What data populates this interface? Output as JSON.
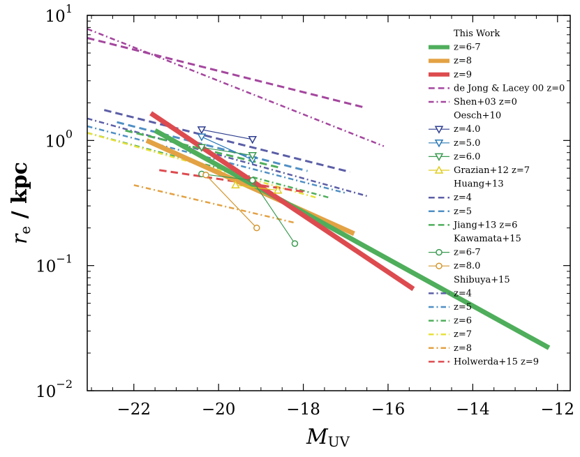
{
  "chart_data": {
    "type": "line",
    "title": "",
    "xlabel_main": "M",
    "xlabel_sub": "UV",
    "ylabel_main": "r",
    "ylabel_sub": "e",
    "ylabel_rest": " / kpc",
    "x_axis": {
      "range": [
        -23.1,
        -11.7
      ],
      "ticks": [
        -22,
        -20,
        -18,
        -16,
        -14,
        -12
      ],
      "tick_labels": [
        "−22",
        "−20",
        "−18",
        "−16",
        "−14",
        "−12"
      ]
    },
    "y_axis": {
      "scale": "log",
      "range": [
        0.01,
        10
      ],
      "ticks": [
        0.01,
        0.1,
        1,
        10
      ],
      "tick_base": "10",
      "tick_exps": [
        "−2",
        "−1",
        "0",
        "1"
      ]
    },
    "grid": false,
    "legend_position": "right",
    "legend": [
      {
        "kind": "header",
        "label": "This Work"
      },
      {
        "kind": "item",
        "label": "z=6-7",
        "ref": "tw67"
      },
      {
        "kind": "item",
        "label": "z=8",
        "ref": "tw8"
      },
      {
        "kind": "item",
        "label": "z=9",
        "ref": "tw9"
      },
      {
        "kind": "item",
        "label": "de Jong & Lacey 00 z=0",
        "ref": "djl"
      },
      {
        "kind": "item",
        "label": "Shen+03 z=0",
        "ref": "shen"
      },
      {
        "kind": "header",
        "label": "Oesch+10"
      },
      {
        "kind": "item",
        "label": "z=4.0",
        "ref": "o4"
      },
      {
        "kind": "item",
        "label": "z=5.0",
        "ref": "o5"
      },
      {
        "kind": "item",
        "label": "z=6.0",
        "ref": "o6"
      },
      {
        "kind": "item",
        "label": "Grazian+12 z=7",
        "ref": "graz"
      },
      {
        "kind": "header",
        "label": "Huang+13"
      },
      {
        "kind": "item",
        "label": "z=4",
        "ref": "h4"
      },
      {
        "kind": "item",
        "label": "z=5",
        "ref": "h5"
      },
      {
        "kind": "item",
        "label": "Jiang+13 z=6",
        "ref": "jiang"
      },
      {
        "kind": "header",
        "label": "Kawamata+15"
      },
      {
        "kind": "item",
        "label": "z=6-7",
        "ref": "k67"
      },
      {
        "kind": "item",
        "label": "z=8.0",
        "ref": "k8"
      },
      {
        "kind": "header",
        "label": "Shibuya+15"
      },
      {
        "kind": "item",
        "label": "z=4",
        "ref": "s4"
      },
      {
        "kind": "item",
        "label": "z=5",
        "ref": "s5"
      },
      {
        "kind": "item",
        "label": "z=6",
        "ref": "s6"
      },
      {
        "kind": "item",
        "label": "z=7",
        "ref": "s7"
      },
      {
        "kind": "item",
        "label": "z=8",
        "ref": "s8"
      },
      {
        "kind": "item",
        "label": "Holwerda+15 z=9",
        "ref": "holw"
      }
    ],
    "series": [
      {
        "id": "s4",
        "name": "Shibuya+15 z=4",
        "color": "#5b5ea6",
        "style": "dashdot",
        "width": 2.5,
        "x": [
          -23.1,
          -16.5
        ],
        "y": [
          1.5,
          0.36
        ]
      },
      {
        "id": "s5",
        "name": "Shibuya+15 z=5",
        "color": "#4f8fc4",
        "style": "dashdot",
        "width": 2.5,
        "x": [
          -23.1,
          -17.0
        ],
        "y": [
          1.3,
          0.38
        ]
      },
      {
        "id": "s6",
        "name": "Shibuya+15 z=6",
        "color": "#4fae5b",
        "style": "dashdot",
        "width": 2.5,
        "x": [
          -23.1,
          -17.4
        ],
        "y": [
          1.15,
          0.35
        ]
      },
      {
        "id": "s7",
        "name": "Shibuya+15 z=7",
        "color": "#e8e13c",
        "style": "dashdot",
        "width": 2.5,
        "x": [
          -23.1,
          -17.7
        ],
        "y": [
          1.15,
          0.35
        ]
      },
      {
        "id": "s8",
        "name": "Shibuya+15 z=8",
        "color": "#e3a244",
        "style": "dashdot",
        "width": 2.5,
        "x": [
          -22.0,
          -18.2
        ],
        "y": [
          0.44,
          0.22
        ]
      },
      {
        "id": "djl",
        "name": "de Jong & Lacey 00 z=0",
        "color": "#a4469e",
        "style": "dashed",
        "width": 3,
        "x": [
          -23.1,
          -16.6
        ],
        "y": [
          6.6,
          1.85
        ]
      },
      {
        "id": "shen",
        "name": "Shen+03 z=0",
        "color": "#a4469e",
        "style": "dashdot",
        "width": 2.5,
        "x": [
          -23.1,
          -16.1
        ],
        "y": [
          7.8,
          0.9
        ]
      },
      {
        "id": "h4",
        "name": "Huang+13 z=4",
        "color": "#5b5ea6",
        "style": "dashed",
        "width": 3,
        "x": [
          -22.7,
          -16.9
        ],
        "y": [
          1.75,
          0.56
        ]
      },
      {
        "id": "h5",
        "name": "Huang+13 z=5",
        "color": "#4f8fc4",
        "style": "dashed",
        "width": 3,
        "x": [
          -22.4,
          -17.9
        ],
        "y": [
          1.4,
          0.57
        ]
      },
      {
        "id": "jiang",
        "name": "Jiang+13 z=6",
        "color": "#4fae5b",
        "style": "dashed",
        "width": 3,
        "x": [
          -22.2,
          -18.5
        ],
        "y": [
          1.2,
          0.6
        ]
      },
      {
        "id": "holw",
        "name": "Holwerda+15 z=9",
        "color": "#dd4b4f",
        "style": "dashed",
        "width": 3,
        "x": [
          -21.4,
          -18.0
        ],
        "y": [
          0.58,
          0.39
        ]
      },
      {
        "id": "tw8",
        "name": "This Work z=8",
        "color": "#e3a244",
        "style": "solid",
        "width": 7,
        "x": [
          -21.7,
          -16.8
        ],
        "y": [
          1.0,
          0.18
        ]
      },
      {
        "id": "tw67",
        "name": "This Work z=6-7",
        "color": "#4fae5b",
        "style": "solid",
        "width": 7,
        "x": [
          -21.5,
          -12.2
        ],
        "y": [
          1.2,
          0.022
        ]
      },
      {
        "id": "tw9",
        "name": "This Work z=9",
        "color": "#dd4b4f",
        "style": "solid",
        "width": 7,
        "x": [
          -21.6,
          -15.4
        ],
        "y": [
          1.65,
          0.065
        ]
      },
      {
        "id": "o4",
        "name": "Oesch+10 z=4.0",
        "color": "#2e3d8f",
        "style": "solid",
        "width": 1.2,
        "marker": "tri-down",
        "x": [
          -20.4,
          -19.2
        ],
        "y": [
          1.22,
          1.02
        ]
      },
      {
        "id": "o5",
        "name": "Oesch+10 z=5.0",
        "color": "#2b78b6",
        "style": "solid",
        "width": 1.2,
        "marker": "tri-down",
        "x": [
          -20.4,
          -19.2
        ],
        "y": [
          1.07,
          0.7
        ]
      },
      {
        "id": "o6",
        "name": "Oesch+10 z=6.0",
        "color": "#3a9a50",
        "style": "solid",
        "width": 1.2,
        "marker": "tri-down",
        "x": [
          -20.4,
          -19.2
        ],
        "y": [
          0.88,
          0.76
        ]
      },
      {
        "id": "graz",
        "name": "Grazian+12 z=7",
        "color": "#e0cc1f",
        "style": "solid",
        "width": 1.2,
        "marker": "tri-up",
        "x": [
          -19.6,
          -18.6
        ],
        "y": [
          0.44,
          0.4
        ]
      },
      {
        "id": "k67",
        "name": "Kawamata+15 z=6-7",
        "color": "#3a9a50",
        "style": "solid",
        "width": 1.2,
        "marker": "circle",
        "x": [
          -20.4,
          -19.2,
          -18.2
        ],
        "y": [
          0.54,
          0.48,
          0.15
        ]
      },
      {
        "id": "k8",
        "name": "Kawamata+15 z=8.0",
        "color": "#d4962e",
        "style": "solid",
        "width": 1.2,
        "marker": "circle",
        "x": [
          -20.3,
          -19.1
        ],
        "y": [
          0.53,
          0.2
        ]
      }
    ]
  }
}
